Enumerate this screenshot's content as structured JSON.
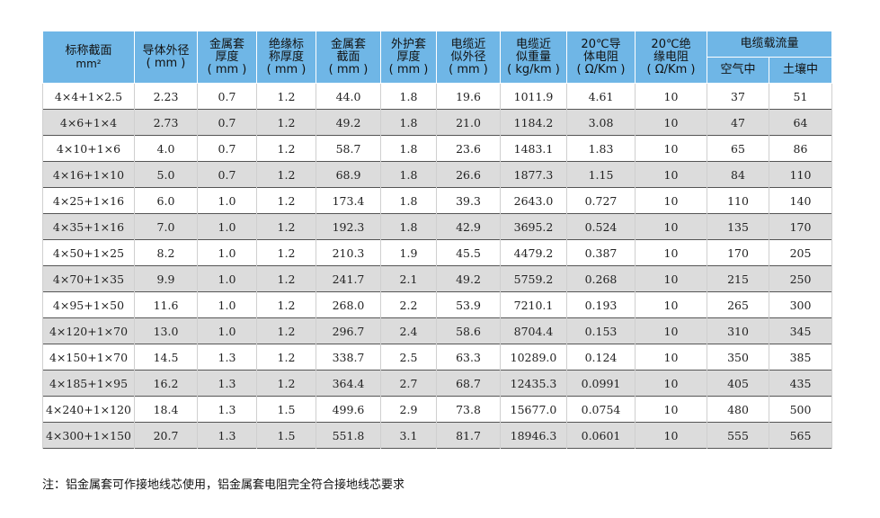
{
  "headers": {
    "col1": [
      "标称截面",
      "mm²"
    ],
    "col2": [
      "导体外径",
      "( mm )"
    ],
    "col3": [
      "金属套",
      "厚度",
      "( mm )"
    ],
    "col4": [
      "绝缘标",
      "称厚度",
      "( mm )"
    ],
    "col5": [
      "金属套",
      "截面",
      "( mm )"
    ],
    "col6": [
      "外护套",
      "厚度",
      "( mm )"
    ],
    "col7": [
      "电缆近",
      "似外径",
      "( mm )"
    ],
    "col8": [
      "电缆近",
      "似重量",
      "( kg/km )"
    ],
    "col9": [
      "20℃导",
      "体电阻",
      "( Ω/Km )"
    ],
    "col10": [
      "20℃绝",
      "缘电阻",
      "( Ω/Km )"
    ],
    "col11_group": "电缆载流量",
    "col11": "空气中",
    "col12": "土壤中"
  },
  "rows": [
    [
      "4×4+1×2.5",
      "2.23",
      "0.7",
      "1.2",
      "44.0",
      "1.8",
      "19.6",
      "1011.9",
      "4.61",
      "10",
      "37",
      "51"
    ],
    [
      "4×6+1×4",
      "2.73",
      "0.7",
      "1.2",
      "49.2",
      "1.8",
      "21.0",
      "1184.2",
      "3.08",
      "10",
      "47",
      "64"
    ],
    [
      "4×10+1×6",
      "4.0",
      "0.7",
      "1.2",
      "58.7",
      "1.8",
      "23.6",
      "1483.1",
      "1.83",
      "10",
      "65",
      "86"
    ],
    [
      "4×16+1×10",
      "5.0",
      "0.7",
      "1.2",
      "68.9",
      "1.8",
      "26.6",
      "1877.3",
      "1.15",
      "10",
      "84",
      "110"
    ],
    [
      "4×25+1×16",
      "6.0",
      "1.0",
      "1.2",
      "173.4",
      "1.8",
      "39.3",
      "2643.0",
      "0.727",
      "10",
      "110",
      "140"
    ],
    [
      "4×35+1×16",
      "7.0",
      "1.0",
      "1.2",
      "192.3",
      "1.8",
      "42.9",
      "3695.2",
      "0.524",
      "10",
      "135",
      "170"
    ],
    [
      "4×50+1×25",
      "8.2",
      "1.0",
      "1.2",
      "210.3",
      "1.9",
      "45.5",
      "4479.2",
      "0.387",
      "10",
      "170",
      "205"
    ],
    [
      "4×70+1×35",
      "9.9",
      "1.0",
      "1.2",
      "241.7",
      "2.1",
      "49.2",
      "5759.2",
      "0.268",
      "10",
      "215",
      "250"
    ],
    [
      "4×95+1×50",
      "11.6",
      "1.0",
      "1.2",
      "268.0",
      "2.2",
      "53.9",
      "7210.1",
      "0.193",
      "10",
      "265",
      "300"
    ],
    [
      "4×120+1×70",
      "13.0",
      "1.0",
      "1.2",
      "296.7",
      "2.4",
      "58.6",
      "8704.4",
      "0.153",
      "10",
      "310",
      "345"
    ],
    [
      "4×150+1×70",
      "14.5",
      "1.3",
      "1.2",
      "338.7",
      "2.5",
      "63.3",
      "10289.0",
      "0.124",
      "10",
      "350",
      "385"
    ],
    [
      "4×185+1×95",
      "16.2",
      "1.3",
      "1.2",
      "364.4",
      "2.7",
      "68.7",
      "12435.3",
      "0.0991",
      "10",
      "405",
      "435"
    ],
    [
      "4×240+1×120",
      "18.4",
      "1.3",
      "1.5",
      "499.6",
      "2.9",
      "73.8",
      "15677.0",
      "0.0754",
      "10",
      "480",
      "500"
    ],
    [
      "4×300+1×150",
      "20.7",
      "1.3",
      "1.5",
      "551.8",
      "3.1",
      "81.7",
      "18946.3",
      "0.0601",
      "10",
      "555",
      "565"
    ]
  ],
  "note": "注：铝金属套可作接地线芯使用，铝金属套电阻完全符合接地线芯要求"
}
